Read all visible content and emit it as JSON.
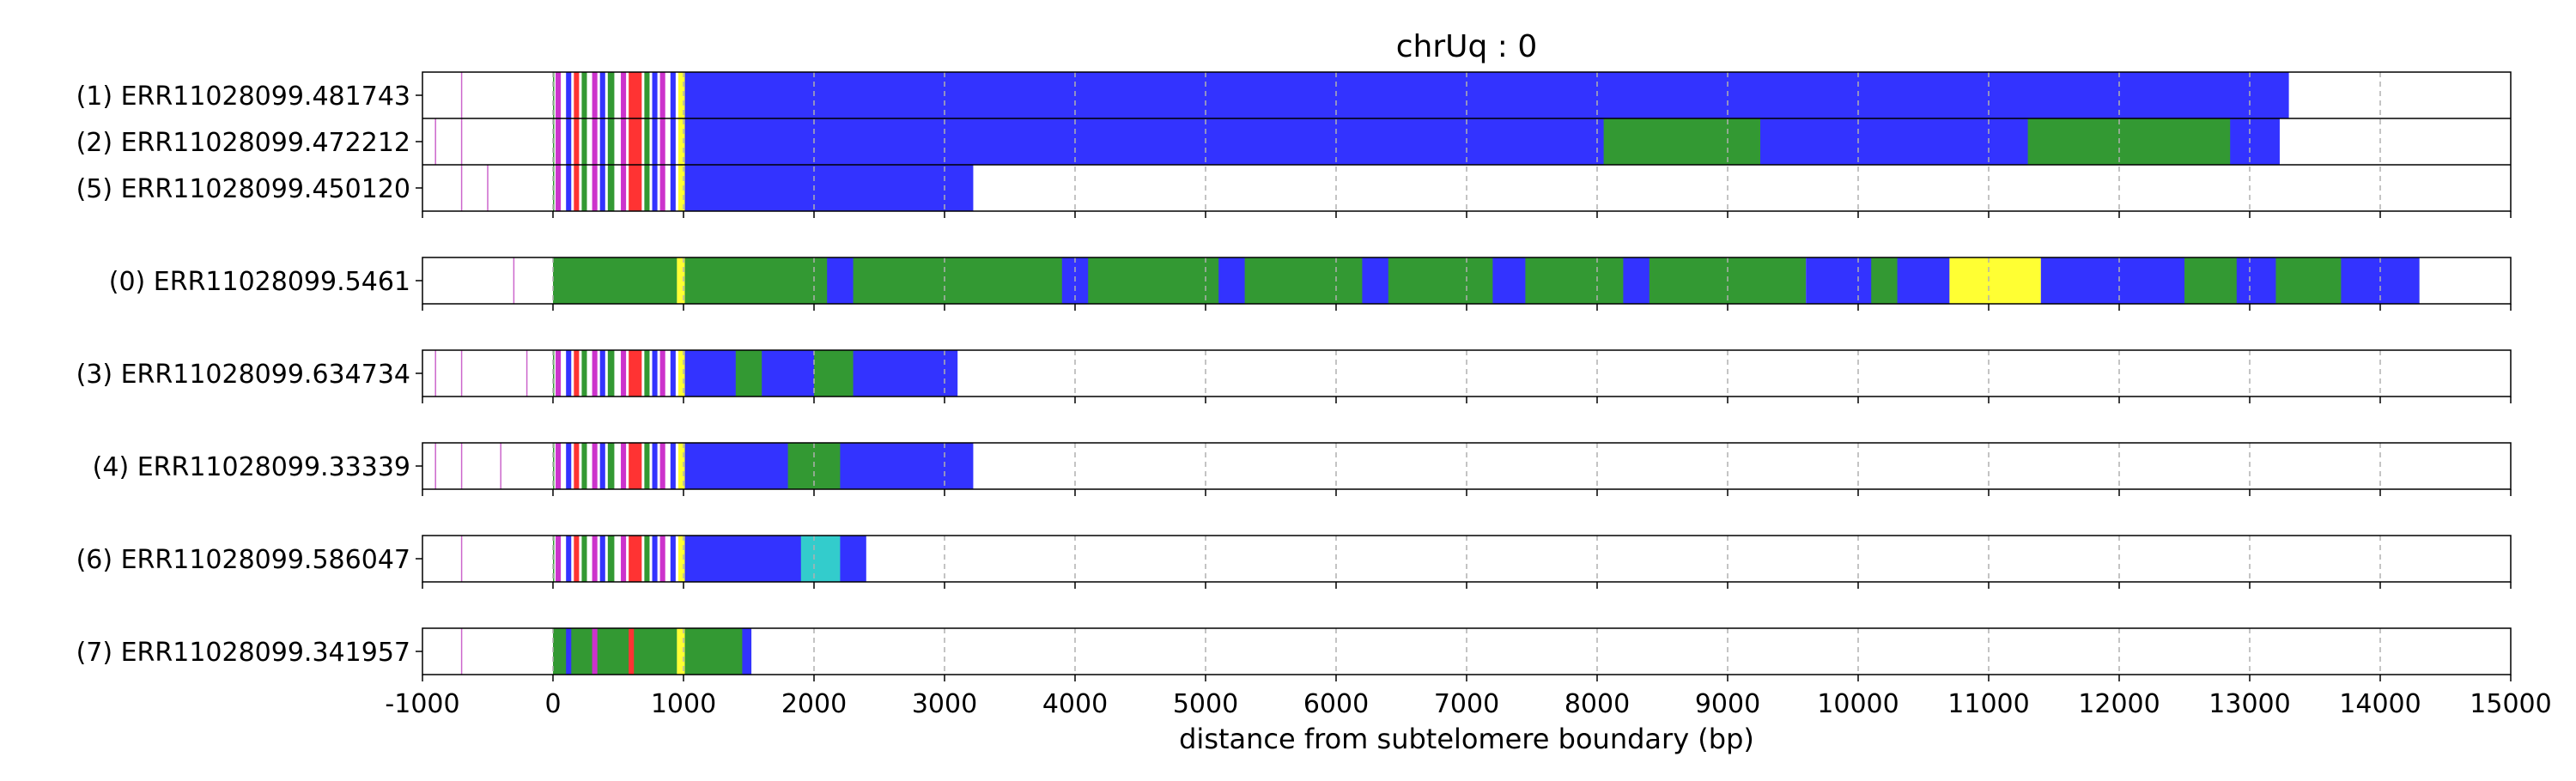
{
  "chart_data": {
    "type": "read-track plot",
    "title": "chrUq : 0",
    "xlabel": "distance from subtelomere boundary (bp)",
    "xlim": [
      -1000,
      15000
    ],
    "xticks": [
      -1000,
      0,
      1000,
      2000,
      3000,
      4000,
      5000,
      6000,
      7000,
      8000,
      9000,
      10000,
      11000,
      12000,
      13000,
      14000,
      15000
    ],
    "grid": "vertical dashed at each 1000 bp tick from 0 to 14000",
    "colors": {
      "blue": "#3333ff",
      "green": "#339933",
      "yellow": "#ffff33",
      "red": "#ff3333",
      "magenta": "#cc33cc",
      "cyan": "#33cccc",
      "white": "#ffffff"
    },
    "groups": [
      {
        "reads": [
          {
            "label": "(1) ERR11028099.481743",
            "end": 13300,
            "ticks": [
              -700
            ],
            "segments": [
              [
                0,
                10,
                "green"
              ],
              [
                20,
                60,
                "magenta"
              ],
              [
                100,
                140,
                "blue"
              ],
              [
                160,
                200,
                "red"
              ],
              [
                220,
                260,
                "green"
              ],
              [
                300,
                340,
                "magenta"
              ],
              [
                360,
                400,
                "blue"
              ],
              [
                420,
                470,
                "green"
              ],
              [
                520,
                560,
                "magenta"
              ],
              [
                580,
                680,
                "red"
              ],
              [
                700,
                740,
                "green"
              ],
              [
                760,
                800,
                "blue"
              ],
              [
                820,
                860,
                "magenta"
              ],
              [
                900,
                940,
                "blue"
              ],
              [
                960,
                1010,
                "yellow"
              ],
              [
                1010,
                13300,
                "blue"
              ]
            ]
          },
          {
            "label": "(2) ERR11028099.472212",
            "end": 13230,
            "ticks": [
              -900,
              -700
            ],
            "segments": [
              [
                0,
                10,
                "green"
              ],
              [
                20,
                60,
                "magenta"
              ],
              [
                100,
                140,
                "blue"
              ],
              [
                160,
                200,
                "red"
              ],
              [
                220,
                260,
                "green"
              ],
              [
                300,
                340,
                "magenta"
              ],
              [
                360,
                400,
                "blue"
              ],
              [
                420,
                470,
                "green"
              ],
              [
                520,
                560,
                "magenta"
              ],
              [
                580,
                680,
                "red"
              ],
              [
                700,
                740,
                "green"
              ],
              [
                760,
                800,
                "blue"
              ],
              [
                820,
                860,
                "magenta"
              ],
              [
                900,
                940,
                "blue"
              ],
              [
                960,
                1010,
                "yellow"
              ],
              [
                1010,
                13230,
                "blue"
              ],
              [
                8050,
                9250,
                "green"
              ],
              [
                11300,
                12850,
                "green"
              ]
            ]
          },
          {
            "label": "(5) ERR11028099.450120",
            "end": 3220,
            "ticks": [
              -700,
              -500
            ],
            "segments": [
              [
                0,
                10,
                "green"
              ],
              [
                20,
                60,
                "magenta"
              ],
              [
                100,
                140,
                "blue"
              ],
              [
                160,
                200,
                "red"
              ],
              [
                220,
                260,
                "green"
              ],
              [
                300,
                340,
                "magenta"
              ],
              [
                360,
                400,
                "blue"
              ],
              [
                420,
                470,
                "green"
              ],
              [
                520,
                560,
                "magenta"
              ],
              [
                580,
                680,
                "red"
              ],
              [
                700,
                740,
                "green"
              ],
              [
                760,
                800,
                "blue"
              ],
              [
                820,
                860,
                "magenta"
              ],
              [
                900,
                940,
                "blue"
              ],
              [
                960,
                1010,
                "yellow"
              ],
              [
                1010,
                3220,
                "blue"
              ]
            ]
          }
        ]
      },
      {
        "reads": [
          {
            "label": "(0) ERR11028099.5461",
            "end": 14300,
            "ticks": [
              -300
            ],
            "segments": [
              [
                0,
                950,
                "green"
              ],
              [
                950,
                1010,
                "yellow"
              ],
              [
                1010,
                9600,
                "green"
              ],
              [
                2100,
                2300,
                "blue"
              ],
              [
                3900,
                4100,
                "blue"
              ],
              [
                5100,
                5300,
                "blue"
              ],
              [
                6200,
                6400,
                "blue"
              ],
              [
                7200,
                7450,
                "blue"
              ],
              [
                8200,
                8400,
                "blue"
              ],
              [
                9600,
                10700,
                "blue"
              ],
              [
                10100,
                10300,
                "green"
              ],
              [
                10700,
                11400,
                "yellow"
              ],
              [
                11400,
                12500,
                "blue"
              ],
              [
                12500,
                14300,
                "green"
              ],
              [
                12900,
                13200,
                "blue"
              ],
              [
                13700,
                14300,
                "blue"
              ]
            ]
          }
        ]
      },
      {
        "reads": [
          {
            "label": "(3) ERR11028099.634734",
            "end": 3500,
            "ticks": [
              -900,
              -700,
              -200
            ],
            "segments": [
              [
                0,
                10,
                "green"
              ],
              [
                20,
                60,
                "magenta"
              ],
              [
                100,
                140,
                "blue"
              ],
              [
                160,
                200,
                "red"
              ],
              [
                220,
                260,
                "green"
              ],
              [
                300,
                340,
                "magenta"
              ],
              [
                360,
                400,
                "blue"
              ],
              [
                420,
                470,
                "green"
              ],
              [
                520,
                560,
                "magenta"
              ],
              [
                580,
                680,
                "red"
              ],
              [
                700,
                740,
                "green"
              ],
              [
                760,
                800,
                "blue"
              ],
              [
                820,
                860,
                "magenta"
              ],
              [
                900,
                940,
                "blue"
              ],
              [
                960,
                1010,
                "yellow"
              ],
              [
                1010,
                3500,
                "blue"
              ],
              [
                1400,
                1600,
                "green"
              ],
              [
                2000,
                2300,
                "green"
              ],
              [
                3100,
                3500,
                "white"
              ]
            ]
          }
        ]
      },
      {
        "reads": [
          {
            "label": "(4) ERR11028099.33339",
            "end": 3220,
            "ticks": [
              -900,
              -700,
              -400
            ],
            "segments": [
              [
                0,
                10,
                "green"
              ],
              [
                20,
                60,
                "magenta"
              ],
              [
                100,
                140,
                "blue"
              ],
              [
                160,
                200,
                "red"
              ],
              [
                220,
                260,
                "green"
              ],
              [
                300,
                340,
                "magenta"
              ],
              [
                360,
                400,
                "blue"
              ],
              [
                420,
                470,
                "green"
              ],
              [
                520,
                560,
                "magenta"
              ],
              [
                580,
                680,
                "red"
              ],
              [
                700,
                740,
                "green"
              ],
              [
                760,
                800,
                "blue"
              ],
              [
                820,
                860,
                "magenta"
              ],
              [
                900,
                940,
                "blue"
              ],
              [
                960,
                1010,
                "yellow"
              ],
              [
                1010,
                3220,
                "blue"
              ],
              [
                1800,
                2200,
                "green"
              ]
            ]
          }
        ]
      },
      {
        "reads": [
          {
            "label": "(6) ERR11028099.586047",
            "end": 2750,
            "ticks": [
              -700
            ],
            "segments": [
              [
                0,
                10,
                "green"
              ],
              [
                20,
                60,
                "magenta"
              ],
              [
                100,
                140,
                "blue"
              ],
              [
                160,
                200,
                "red"
              ],
              [
                220,
                260,
                "green"
              ],
              [
                300,
                340,
                "magenta"
              ],
              [
                360,
                400,
                "blue"
              ],
              [
                420,
                470,
                "green"
              ],
              [
                520,
                560,
                "magenta"
              ],
              [
                580,
                680,
                "red"
              ],
              [
                700,
                740,
                "green"
              ],
              [
                760,
                800,
                "blue"
              ],
              [
                820,
                860,
                "magenta"
              ],
              [
                900,
                940,
                "blue"
              ],
              [
                960,
                1010,
                "yellow"
              ],
              [
                1010,
                2750,
                "blue"
              ],
              [
                1900,
                2200,
                "cyan"
              ],
              [
                2400,
                2750,
                "white"
              ]
            ]
          }
        ]
      },
      {
        "reads": [
          {
            "label": "(7) ERR11028099.341957",
            "end": 1520,
            "ticks": [
              -700
            ],
            "segments": [
              [
                0,
                950,
                "green"
              ],
              [
                100,
                140,
                "blue"
              ],
              [
                300,
                340,
                "magenta"
              ],
              [
                580,
                620,
                "red"
              ],
              [
                950,
                1010,
                "yellow"
              ],
              [
                1010,
                1520,
                "green"
              ],
              [
                1450,
                1520,
                "blue"
              ]
            ]
          }
        ]
      }
    ]
  }
}
